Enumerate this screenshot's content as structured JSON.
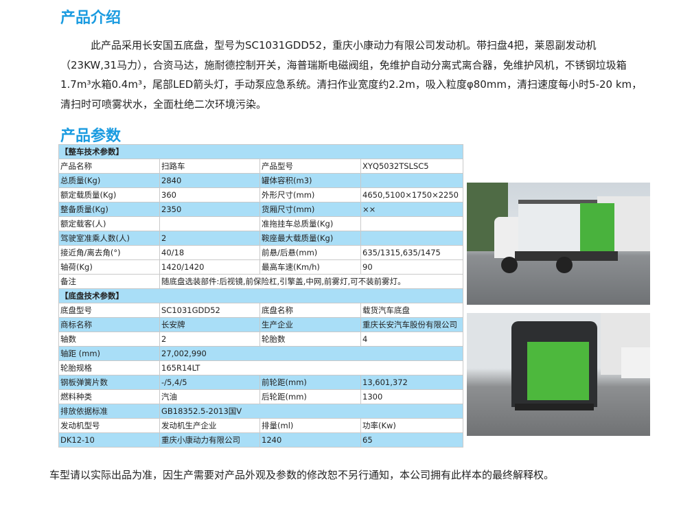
{
  "intro": {
    "title": "产品介绍",
    "text": "此产品采用长安国五底盘，型号为SC1031GDD52，重庆小康动力有限公司发动机。带扫盘4把，莱恩副发动机（23KW,31马力），合资马达，施耐德控制开关，海普瑞斯电磁阀组，免维护自动分离式离合器，免维护风机，不锈钢垃圾箱1.7m³水箱0.4m³，尾部LED箭头灯，手动泵应急系统。清扫作业宽度约2.2m，吸入粒度φ80mm，清扫速度每小时5-20 km，清扫时可喷雾状水，全面杜绝二次环境污染。"
  },
  "params": {
    "title": "产品参数",
    "rows": [
      {
        "type": "sec",
        "cells": [
          "【整车技术参数】"
        ]
      },
      {
        "type": "w",
        "cells": [
          "产品名称",
          "扫路车",
          "产品型号",
          "XYQ5032TSLSC5"
        ]
      },
      {
        "type": "b",
        "cells": [
          "总质量(Kg)",
          "2840",
          "罐体容积(m3)",
          ""
        ]
      },
      {
        "type": "w",
        "cells": [
          "额定载质量(Kg)",
          "360",
          "外形尺寸(mm)",
          "4650,5100×1750×2250"
        ]
      },
      {
        "type": "b",
        "cells": [
          "整备质量(Kg)",
          "2350",
          "货厢尺寸(mm)",
          "××"
        ]
      },
      {
        "type": "w",
        "cells": [
          "额定载客(人)",
          "",
          "准拖挂车总质量(Kg)",
          ""
        ]
      },
      {
        "type": "b",
        "cells": [
          "驾驶室准乘人数(人)",
          "2",
          "鞍座最大载质量(Kg)",
          ""
        ]
      },
      {
        "type": "w",
        "cells": [
          "接近角/离去角(°)",
          "40/18",
          "前悬/后悬(mm)",
          "635/1315,635/1475"
        ]
      },
      {
        "type": "w",
        "cells": [
          "轴荷(Kg)",
          "1420/1420",
          "最高车速(Km/h)",
          "90"
        ]
      },
      {
        "type": "w2",
        "cells": [
          "备注",
          "随底盘选装部件:后视镜,前保险杠,引擎盖,中网,前雾灯,可不装前雾灯。"
        ]
      },
      {
        "type": "sec",
        "cells": [
          "【底盘技术参数】"
        ]
      },
      {
        "type": "w",
        "cells": [
          "底盘型号",
          "SC1031GDD52",
          "底盘名称",
          "载货汽车底盘"
        ]
      },
      {
        "type": "b",
        "cells": [
          "商标名称",
          "长安牌",
          "生产企业",
          "重庆长安汽车股份有限公司"
        ]
      },
      {
        "type": "w",
        "cells": [
          "轴数",
          "2",
          "轮胎数",
          "4"
        ]
      },
      {
        "type": "b2",
        "cells": [
          "轴距 (mm)",
          "27,002,990"
        ]
      },
      {
        "type": "w2",
        "cells": [
          "轮胎规格",
          "165R14LT"
        ]
      },
      {
        "type": "b",
        "cells": [
          "钢板弹簧片数",
          "-/5,4/5",
          "前轮距(mm)",
          "13,601,372"
        ]
      },
      {
        "type": "w",
        "cells": [
          "燃料种类",
          "汽油",
          "后轮距(mm)",
          "1300"
        ]
      },
      {
        "type": "b2",
        "cells": [
          "排放依据标准",
          "GB18352.5-2013国Ⅴ"
        ]
      },
      {
        "type": "w",
        "cells": [
          "发动机型号",
          "发动机生产企业",
          "排量(ml)",
          "功率(Kw)"
        ]
      },
      {
        "type": "b",
        "cells": [
          "DK12-10",
          "重庆小康动力有限公司",
          "1240",
          "65"
        ]
      }
    ]
  },
  "footer": "车型请以实际出品为准，因生产需要对产品外观及参数的修改恕不另行通知，本公司拥有此样本的最终解释权。"
}
